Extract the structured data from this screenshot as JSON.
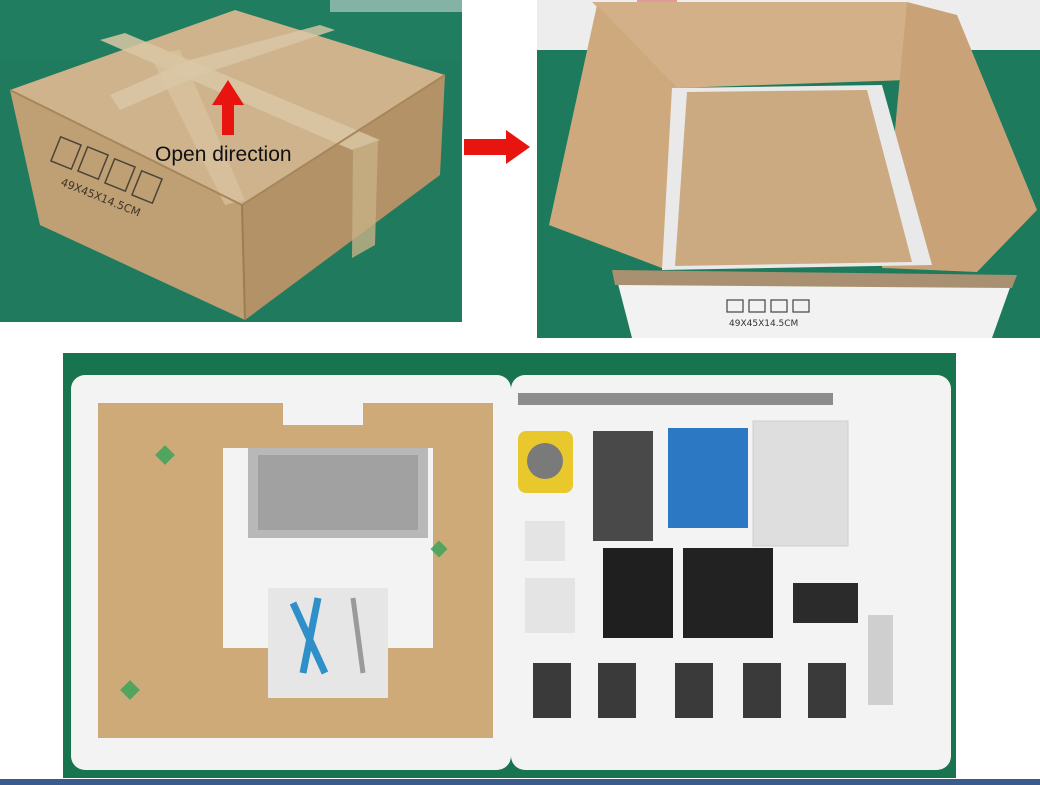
{
  "closed_box": {
    "annotation": "Open direction",
    "box_marking": "49X45X14.5CM"
  },
  "open_box": {
    "box_marking": "49X45X14.5CM"
  },
  "colors": {
    "arrow": "#e8140f",
    "cardboard": "#cdb08a",
    "background_green": "#1f7a5e",
    "foam": "#f3f3f3",
    "acrylic": "#c9a26a"
  },
  "icons": [
    "up-arrow-icon",
    "right-arrow-icon",
    "fragile-icon",
    "this-way-up-icon",
    "keep-dry-icon",
    "recycle-icon"
  ]
}
